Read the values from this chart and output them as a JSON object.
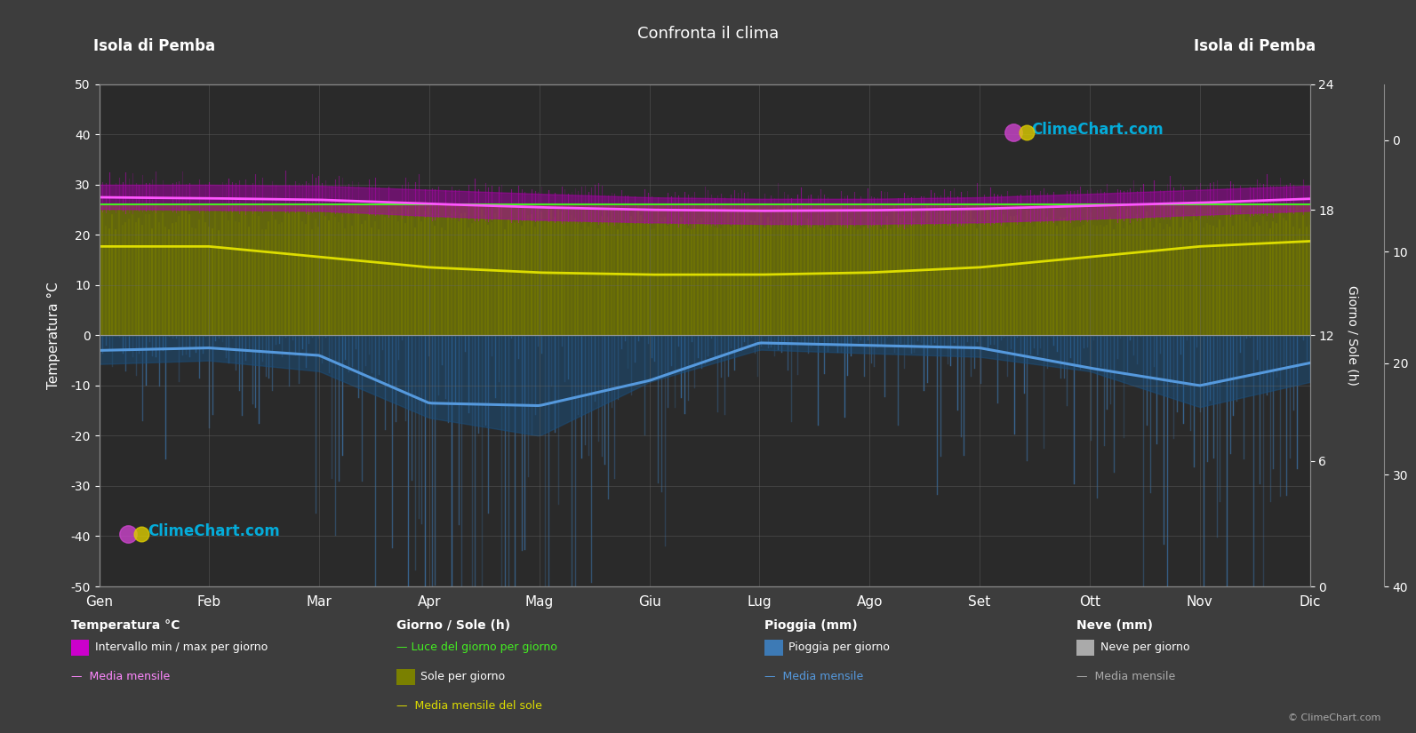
{
  "title": "Confronta il clima",
  "location_left": "Isola di Pemba",
  "location_right": "Isola di Pemba",
  "background_color": "#3d3d3d",
  "plot_bg_color": "#2a2a2a",
  "months": [
    "Gen",
    "Feb",
    "Mar",
    "Apr",
    "Mag",
    "Giu",
    "Lug",
    "Ago",
    "Set",
    "Ott",
    "Nov",
    "Dic"
  ],
  "temp_ylim": [
    -50,
    50
  ],
  "sun_ylim": [
    0,
    24
  ],
  "rain_ylim_mm": [
    0,
    40
  ],
  "temp_mean": [
    27.5,
    27.3,
    27.0,
    26.2,
    25.5,
    25.0,
    24.8,
    24.9,
    25.2,
    25.8,
    26.4,
    27.2
  ],
  "temp_max_mean": [
    30.0,
    30.0,
    29.8,
    29.0,
    28.2,
    27.5,
    27.2,
    27.2,
    27.5,
    28.2,
    29.0,
    29.8
  ],
  "temp_min_mean": [
    25.2,
    25.0,
    24.8,
    23.8,
    23.0,
    22.5,
    22.2,
    22.2,
    22.5,
    23.2,
    24.0,
    24.8
  ],
  "sun_daylight_h": [
    12.5,
    12.5,
    12.5,
    12.5,
    12.5,
    12.5,
    12.5,
    12.5,
    12.5,
    12.5,
    12.5,
    12.5
  ],
  "sun_hours_h": [
    8.5,
    8.5,
    7.5,
    6.5,
    6.0,
    5.8,
    5.8,
    6.0,
    6.5,
    7.5,
    8.5,
    9.0
  ],
  "rain_mm_mean": [
    80,
    70,
    100,
    230,
    280,
    130,
    40,
    50,
    60,
    100,
    200,
    130
  ],
  "rain_scale_factor": 1.25,
  "logo_text": "ClimeChart.com",
  "copyright_text": "© ClimeChart.com",
  "legend_sections": [
    "Temperatura °C",
    "Giorno / Sole (h)",
    "Pioggia (mm)",
    "Neve (mm)"
  ],
  "legend_items": {
    "temp": [
      "Intervallo min / max per giorno",
      "Media mensile"
    ],
    "sun": [
      "Luce del giorno per giorno",
      "Sole per giorno",
      "Media mensile del sole"
    ],
    "rain": [
      "Pioggia per giorno",
      "Media mensile"
    ],
    "snow": [
      "Neve per giorno",
      "Media mensile"
    ]
  }
}
